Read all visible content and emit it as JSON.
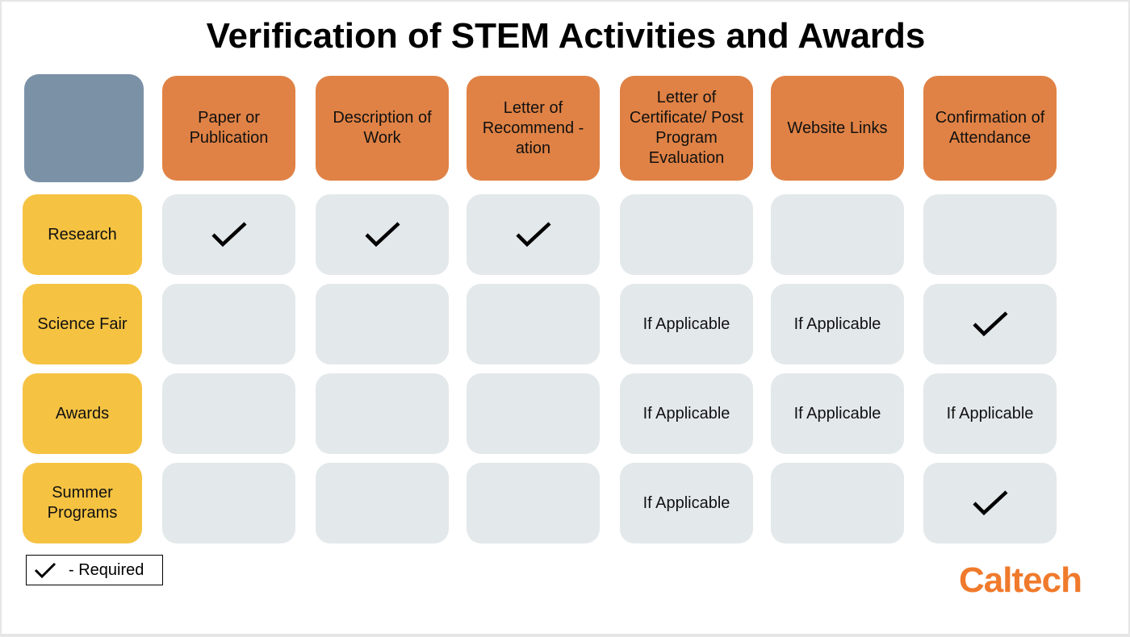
{
  "title": "Verification of STEM Activities and Awards",
  "columns": [
    "Paper or Publication",
    "Description of Work",
    "Letter of Recommend -ation",
    "Letter of Certificate/ Post Program Evaluation",
    "Website Links",
    "Confirmation of Attendance"
  ],
  "rows": [
    {
      "label": "Research",
      "cells": [
        "check",
        "check",
        "check",
        "",
        "",
        ""
      ]
    },
    {
      "label": "Science Fair",
      "cells": [
        "",
        "",
        "",
        "If Applicable",
        "If Applicable",
        "check"
      ]
    },
    {
      "label": "Awards",
      "cells": [
        "",
        "",
        "",
        "If Applicable",
        "If Applicable",
        "If Applicable"
      ]
    },
    {
      "label": "Summer Programs",
      "cells": [
        "",
        "",
        "",
        "If Applicable",
        "",
        "check"
      ]
    }
  ],
  "legend": {
    "icon": "checkmark-icon",
    "label": "- Required"
  },
  "logo": "Caltech",
  "colors": {
    "corner": "#7b91a6",
    "header": "#e08245",
    "row_label": "#f5c242",
    "cell": "#e3e8eb",
    "logo": "#f07a2c"
  }
}
